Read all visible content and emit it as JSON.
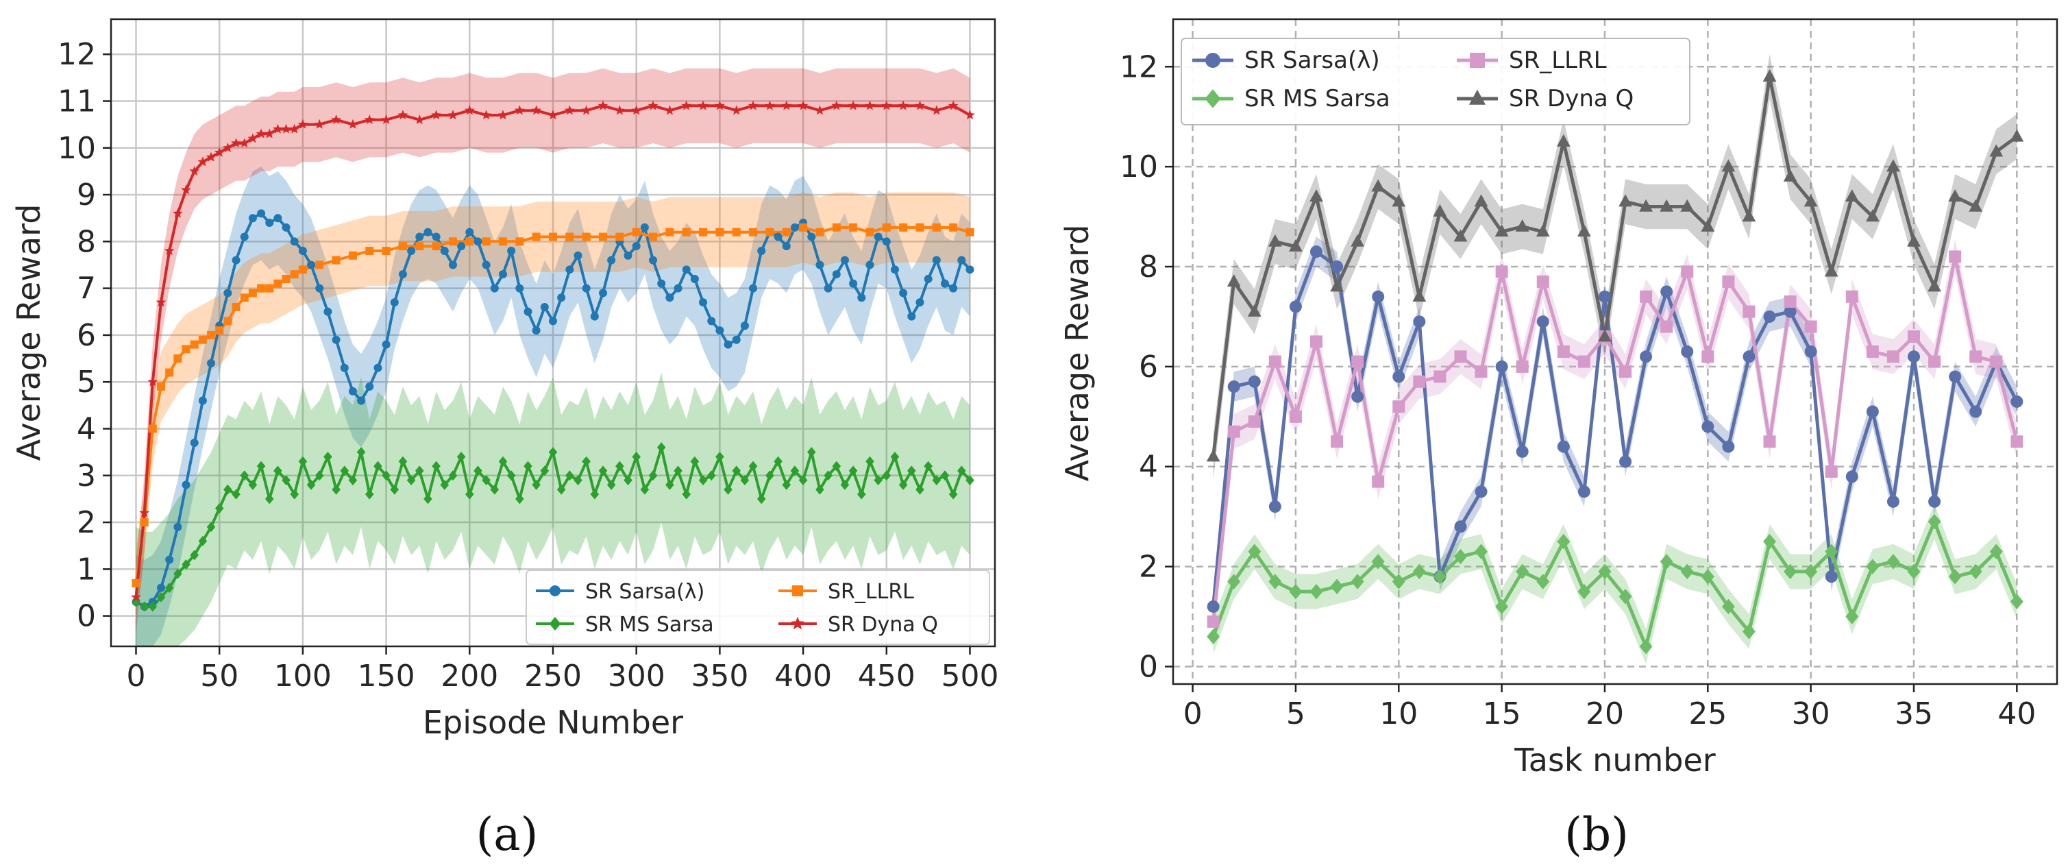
{
  "chart_data": [
    {
      "id": "a",
      "type": "line",
      "caption": "(a)",
      "xlabel": "Episode Number",
      "ylabel": "Average Reward",
      "xlim": [
        -15,
        515
      ],
      "ylim": [
        -0.65,
        12.75
      ],
      "xticks": [
        0,
        50,
        100,
        150,
        200,
        250,
        300,
        350,
        400,
        450,
        500
      ],
      "yticks": [
        0,
        1,
        2,
        3,
        4,
        5,
        6,
        7,
        8,
        9,
        10,
        11,
        12
      ],
      "grid": "solid",
      "legend_position": "lower-right",
      "series": [
        {
          "name": "SR Sarsa(λ)",
          "color": "#1f77b4",
          "marker": "circle",
          "band_width": 1.0,
          "x": [
            0,
            5,
            10,
            15,
            20,
            25,
            30,
            35,
            40,
            45,
            50,
            55,
            60,
            65,
            70,
            75,
            80,
            85,
            90,
            95,
            100,
            105,
            110,
            115,
            120,
            125,
            130,
            135,
            140,
            145,
            150,
            155,
            160,
            165,
            170,
            175,
            180,
            185,
            190,
            195,
            200,
            205,
            210,
            215,
            220,
            225,
            230,
            235,
            240,
            245,
            250,
            255,
            260,
            265,
            270,
            275,
            280,
            285,
            290,
            295,
            300,
            305,
            310,
            315,
            320,
            325,
            330,
            335,
            340,
            345,
            350,
            355,
            360,
            365,
            370,
            375,
            380,
            385,
            390,
            395,
            400,
            405,
            410,
            415,
            420,
            425,
            430,
            435,
            440,
            445,
            450,
            455,
            460,
            465,
            470,
            475,
            480,
            485,
            490,
            495,
            500
          ],
          "y": [
            0.3,
            0.2,
            0.3,
            0.6,
            1.2,
            1.9,
            2.8,
            3.7,
            4.6,
            5.4,
            6.2,
            6.9,
            7.6,
            8.1,
            8.5,
            8.6,
            8.4,
            8.5,
            8.3,
            8.0,
            7.8,
            7.5,
            7.0,
            6.5,
            5.9,
            5.3,
            4.8,
            4.6,
            4.9,
            5.3,
            5.8,
            6.7,
            7.3,
            7.8,
            8.1,
            8.2,
            8.1,
            7.8,
            7.5,
            7.9,
            8.2,
            8.0,
            7.5,
            7.0,
            7.3,
            7.8,
            7.0,
            6.5,
            6.1,
            6.6,
            6.3,
            6.8,
            7.4,
            7.7,
            7.0,
            6.4,
            6.9,
            7.6,
            8.0,
            7.7,
            7.9,
            8.3,
            7.6,
            7.1,
            6.8,
            7.0,
            7.4,
            7.2,
            6.7,
            6.3,
            6.1,
            5.8,
            5.9,
            6.2,
            7.0,
            7.8,
            8.2,
            8.1,
            7.9,
            8.3,
            8.4,
            8.1,
            7.5,
            7.0,
            7.3,
            7.6,
            7.1,
            6.8,
            7.5,
            8.1,
            8.0,
            7.4,
            6.9,
            6.4,
            6.7,
            7.2,
            7.6,
            7.1,
            7.0,
            7.6,
            7.4
          ]
        },
        {
          "name": "SR_LLRL",
          "color": "#ff7f0e",
          "marker": "square",
          "band_width": 0.75,
          "x": [
            0,
            5,
            10,
            15,
            20,
            25,
            30,
            35,
            40,
            45,
            50,
            55,
            60,
            65,
            70,
            75,
            80,
            85,
            90,
            95,
            100,
            110,
            120,
            130,
            140,
            150,
            160,
            170,
            180,
            190,
            200,
            210,
            220,
            230,
            240,
            250,
            260,
            270,
            280,
            290,
            300,
            310,
            320,
            330,
            340,
            350,
            360,
            370,
            380,
            390,
            400,
            410,
            420,
            430,
            440,
            450,
            460,
            470,
            480,
            490,
            500
          ],
          "y": [
            0.7,
            2.0,
            4.0,
            4.9,
            5.2,
            5.5,
            5.7,
            5.8,
            5.9,
            6.0,
            6.1,
            6.3,
            6.6,
            6.8,
            6.9,
            7.0,
            7.0,
            7.1,
            7.2,
            7.3,
            7.4,
            7.5,
            7.6,
            7.7,
            7.8,
            7.8,
            7.9,
            7.9,
            7.9,
            8.0,
            8.0,
            8.0,
            8.0,
            8.0,
            8.1,
            8.1,
            8.1,
            8.1,
            8.1,
            8.1,
            8.2,
            8.1,
            8.2,
            8.2,
            8.2,
            8.2,
            8.2,
            8.2,
            8.2,
            8.2,
            8.3,
            8.2,
            8.3,
            8.3,
            8.2,
            8.3,
            8.3,
            8.3,
            8.3,
            8.3,
            8.2
          ]
        },
        {
          "name": "SR MS Sarsa",
          "color": "#2ca02c",
          "marker": "diamond",
          "band_width": 1.6,
          "x": [
            0,
            5,
            10,
            15,
            20,
            25,
            30,
            35,
            40,
            45,
            50,
            55,
            60,
            65,
            70,
            75,
            80,
            85,
            90,
            95,
            100,
            105,
            110,
            115,
            120,
            125,
            130,
            135,
            140,
            145,
            150,
            155,
            160,
            165,
            170,
            175,
            180,
            185,
            190,
            195,
            200,
            205,
            210,
            215,
            220,
            225,
            230,
            235,
            240,
            245,
            250,
            255,
            260,
            265,
            270,
            275,
            280,
            285,
            290,
            295,
            300,
            305,
            310,
            315,
            320,
            325,
            330,
            335,
            340,
            345,
            350,
            355,
            360,
            365,
            370,
            375,
            380,
            385,
            390,
            395,
            400,
            405,
            410,
            415,
            420,
            425,
            430,
            435,
            440,
            445,
            450,
            455,
            460,
            465,
            470,
            475,
            480,
            485,
            490,
            495,
            500
          ],
          "y": [
            0.3,
            0.2,
            0.2,
            0.4,
            0.6,
            0.9,
            1.1,
            1.3,
            1.6,
            1.9,
            2.3,
            2.7,
            2.6,
            3.0,
            2.8,
            3.2,
            2.5,
            3.1,
            2.9,
            2.6,
            3.3,
            2.8,
            3.0,
            3.4,
            2.7,
            3.1,
            2.9,
            3.5,
            2.6,
            3.2,
            3.0,
            2.7,
            3.3,
            2.9,
            3.1,
            2.5,
            3.2,
            2.8,
            3.0,
            3.4,
            2.6,
            3.1,
            2.9,
            2.7,
            3.3,
            3.0,
            2.5,
            3.2,
            2.8,
            3.1,
            3.5,
            2.7,
            3.0,
            2.9,
            3.3,
            2.6,
            3.1,
            2.8,
            3.2,
            2.9,
            3.4,
            2.7,
            3.0,
            3.6,
            2.8,
            3.1,
            2.6,
            3.3,
            2.9,
            3.0,
            3.4,
            2.7,
            3.1,
            2.9,
            3.2,
            2.5,
            3.0,
            3.3,
            2.8,
            3.1,
            2.9,
            3.5,
            2.7,
            3.0,
            3.2,
            2.8,
            3.1,
            2.6,
            3.3,
            2.9,
            3.0,
            3.4,
            2.8,
            3.1,
            2.7,
            3.2,
            2.9,
            3.0,
            2.6,
            3.1,
            2.9
          ]
        },
        {
          "name": "SR Dyna Q",
          "color": "#d62728",
          "marker": "star",
          "band_width": 0.8,
          "x": [
            0,
            5,
            10,
            15,
            20,
            25,
            30,
            35,
            40,
            45,
            50,
            55,
            60,
            65,
            70,
            75,
            80,
            85,
            90,
            95,
            100,
            110,
            120,
            130,
            140,
            150,
            160,
            170,
            180,
            190,
            200,
            210,
            220,
            230,
            240,
            250,
            260,
            270,
            280,
            290,
            300,
            310,
            320,
            330,
            340,
            350,
            360,
            370,
            380,
            390,
            400,
            410,
            420,
            430,
            440,
            450,
            460,
            470,
            480,
            490,
            500
          ],
          "y": [
            0.4,
            2.2,
            5.0,
            6.7,
            7.8,
            8.6,
            9.1,
            9.5,
            9.7,
            9.8,
            9.9,
            10.0,
            10.1,
            10.1,
            10.2,
            10.3,
            10.3,
            10.4,
            10.4,
            10.4,
            10.5,
            10.5,
            10.6,
            10.5,
            10.6,
            10.6,
            10.7,
            10.6,
            10.7,
            10.7,
            10.8,
            10.7,
            10.7,
            10.8,
            10.8,
            10.7,
            10.8,
            10.8,
            10.9,
            10.8,
            10.8,
            10.9,
            10.8,
            10.9,
            10.9,
            10.9,
            10.8,
            10.9,
            10.9,
            10.9,
            10.9,
            10.8,
            10.9,
            10.9,
            10.9,
            10.9,
            10.9,
            10.9,
            10.8,
            10.9,
            10.7
          ]
        }
      ]
    },
    {
      "id": "b",
      "type": "line",
      "caption": "(b)",
      "xlabel": "Task number",
      "ylabel": "Average Reward",
      "xlim": [
        -0.95,
        41.95
      ],
      "ylim": [
        -0.35,
        12.95
      ],
      "xticks": [
        0,
        5,
        10,
        15,
        20,
        25,
        30,
        35,
        40
      ],
      "yticks": [
        0,
        2,
        4,
        6,
        8,
        10,
        12
      ],
      "grid": "dashed",
      "legend_position": "top-left",
      "series": [
        {
          "name": "SR Sarsa(λ)",
          "color": "#5a70ab",
          "marker": "circle",
          "band_width": 0.3,
          "x": [
            1,
            2,
            3,
            4,
            5,
            6,
            7,
            8,
            9,
            10,
            11,
            12,
            13,
            14,
            15,
            16,
            17,
            18,
            19,
            20,
            21,
            22,
            23,
            24,
            25,
            26,
            27,
            28,
            29,
            30,
            31,
            32,
            33,
            34,
            35,
            36,
            37,
            38,
            39,
            40
          ],
          "y": [
            1.2,
            5.6,
            5.7,
            3.2,
            7.2,
            8.3,
            8.0,
            5.4,
            7.4,
            5.8,
            6.9,
            1.8,
            2.8,
            3.5,
            6.0,
            4.3,
            6.9,
            4.4,
            3.5,
            7.4,
            4.1,
            6.2,
            7.5,
            6.3,
            4.8,
            4.4,
            6.2,
            7.0,
            7.1,
            6.3,
            1.8,
            3.8,
            5.1,
            3.3,
            6.2,
            3.3,
            5.8,
            5.1,
            6.1,
            5.3
          ]
        },
        {
          "name": "SR_LLRL",
          "color": "#d59ac9",
          "marker": "square",
          "band_width": 0.35,
          "x": [
            1,
            2,
            3,
            4,
            5,
            6,
            7,
            8,
            9,
            10,
            11,
            12,
            13,
            14,
            15,
            16,
            17,
            18,
            19,
            20,
            21,
            22,
            23,
            24,
            25,
            26,
            27,
            28,
            29,
            30,
            31,
            32,
            33,
            34,
            35,
            36,
            37,
            38,
            39,
            40
          ],
          "y": [
            0.9,
            4.7,
            4.9,
            6.1,
            5.0,
            6.5,
            4.5,
            6.1,
            3.7,
            5.2,
            5.7,
            5.8,
            6.2,
            5.9,
            7.9,
            6.0,
            7.7,
            6.3,
            6.1,
            6.6,
            5.9,
            7.4,
            6.8,
            7.9,
            6.2,
            7.7,
            7.1,
            4.5,
            7.3,
            6.8,
            3.9,
            7.4,
            6.3,
            6.2,
            6.6,
            6.1,
            8.2,
            6.2,
            6.1,
            4.5
          ]
        },
        {
          "name": "SR MS Sarsa",
          "color": "#6cbd65",
          "marker": "diamond",
          "band_width": 0.35,
          "x": [
            1,
            2,
            3,
            4,
            5,
            6,
            7,
            8,
            9,
            10,
            11,
            12,
            13,
            14,
            15,
            16,
            17,
            18,
            19,
            20,
            21,
            22,
            23,
            24,
            25,
            26,
            27,
            28,
            29,
            30,
            31,
            32,
            33,
            34,
            35,
            36,
            37,
            38,
            39,
            40
          ],
          "y": [
            0.6,
            1.7,
            2.3,
            1.7,
            1.5,
            1.5,
            1.6,
            1.7,
            2.1,
            1.7,
            1.9,
            1.8,
            2.2,
            2.3,
            1.2,
            1.9,
            1.7,
            2.5,
            1.5,
            1.9,
            1.4,
            0.4,
            2.1,
            1.9,
            1.8,
            1.2,
            0.7,
            2.5,
            1.9,
            1.9,
            2.3,
            1.0,
            2.0,
            2.1,
            1.9,
            2.9,
            1.8,
            1.9,
            2.3,
            1.3
          ]
        },
        {
          "name": "SR Dyna Q",
          "color": "#646464",
          "marker": "triangle",
          "band_width": 0.45,
          "x": [
            1,
            2,
            3,
            4,
            5,
            6,
            7,
            8,
            9,
            10,
            11,
            12,
            13,
            14,
            15,
            16,
            17,
            18,
            19,
            20,
            21,
            22,
            23,
            24,
            25,
            26,
            27,
            28,
            29,
            30,
            31,
            32,
            33,
            34,
            35,
            36,
            37,
            38,
            39,
            40
          ],
          "y": [
            4.2,
            7.7,
            7.1,
            8.5,
            8.4,
            9.4,
            7.6,
            8.5,
            9.6,
            9.3,
            7.4,
            9.1,
            8.6,
            9.3,
            8.7,
            8.8,
            8.7,
            10.5,
            8.7,
            6.6,
            9.3,
            9.2,
            9.2,
            9.2,
            8.8,
            10.0,
            9.0,
            11.8,
            9.8,
            9.3,
            7.9,
            9.4,
            9.0,
            10.0,
            8.5,
            7.6,
            9.4,
            9.2,
            10.3,
            10.6
          ]
        }
      ]
    }
  ]
}
